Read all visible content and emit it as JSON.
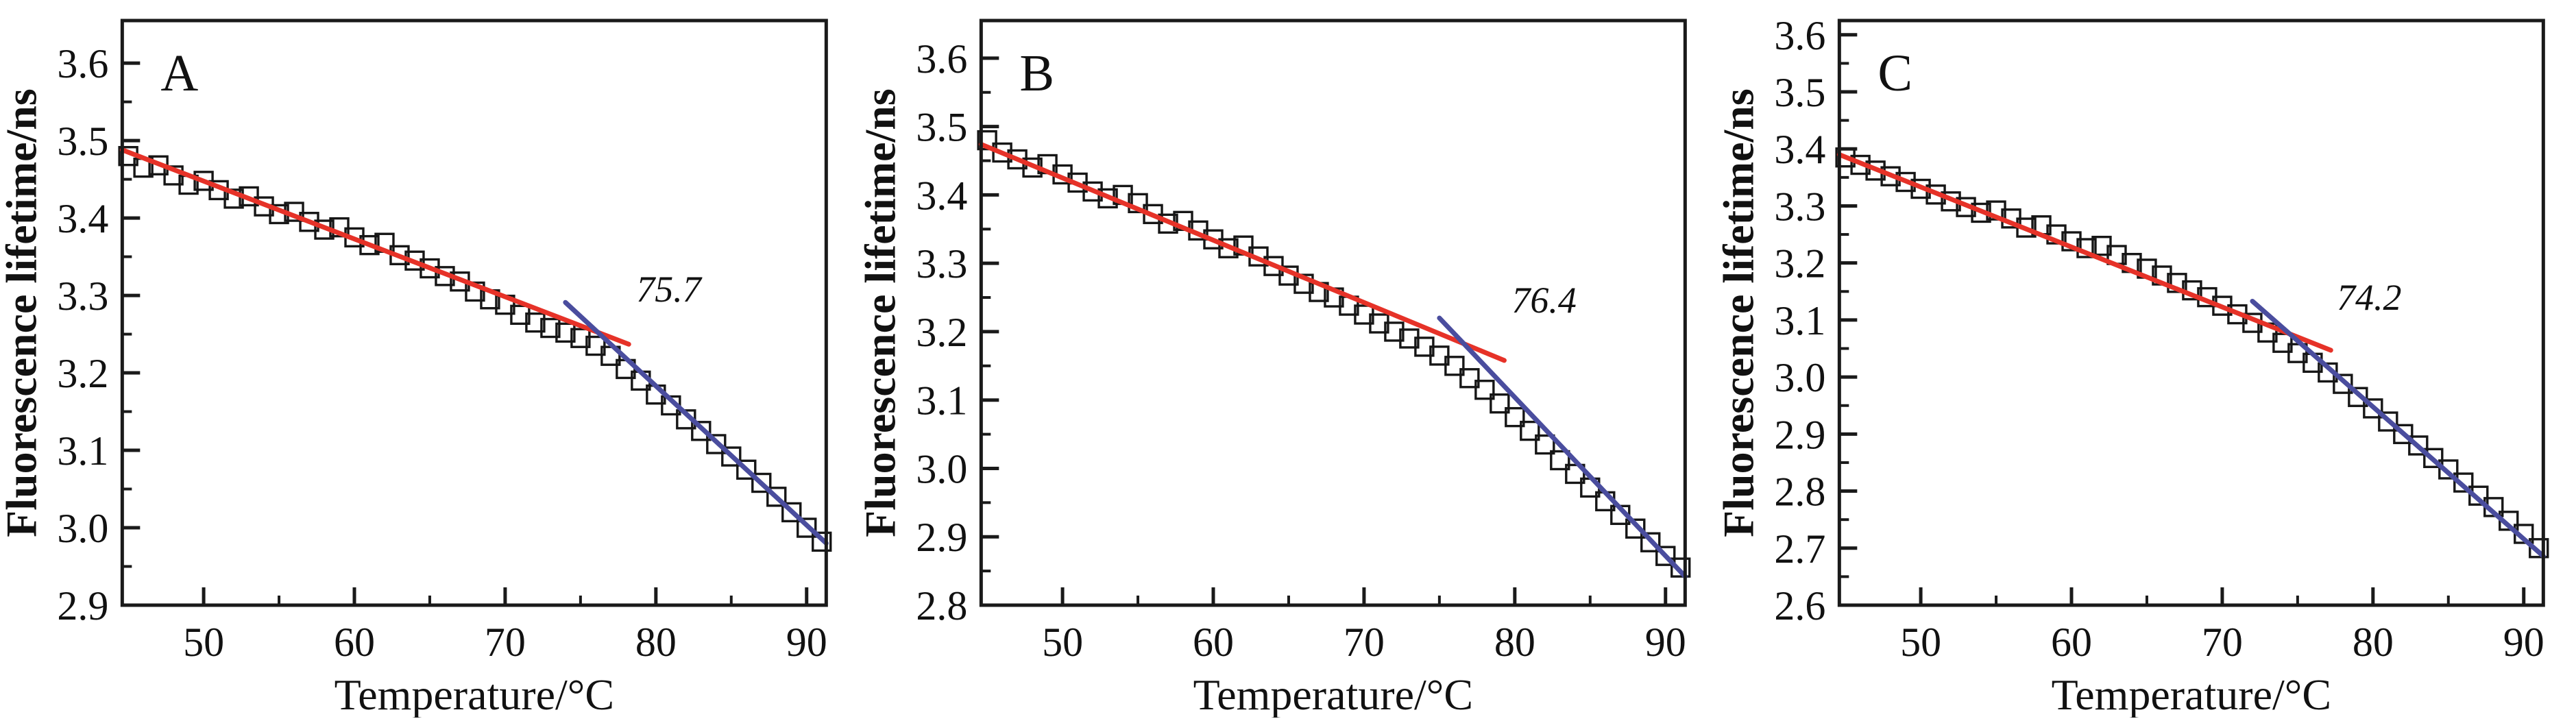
{
  "colors": {
    "marker": "#161616",
    "axis": "#1a1a1a",
    "fit_red": "#e63228",
    "fit_blue": "#4a4d9e"
  },
  "chart_data": [
    {
      "type": "scatter",
      "panel": "A",
      "xlabel": "Temperature/°C",
      "ylabel": "Fluorescence lifetime/ns",
      "xlim": [
        44.6,
        91.3
      ],
      "ylim": [
        2.9,
        3.655
      ],
      "grid": false,
      "legend": "none",
      "x_major_ticks": [
        50,
        60,
        70,
        80,
        90
      ],
      "x_tick_labels": [
        "50",
        "60",
        "70",
        "80",
        "90"
      ],
      "x_minor_ticks": [
        55,
        65,
        75,
        85
      ],
      "y_major_ticks": [
        2.9,
        3.0,
        3.1,
        3.2,
        3.3,
        3.4,
        3.5,
        3.6
      ],
      "y_tick_labels": [
        "2.9",
        "3.0",
        "3.1",
        "3.2",
        "3.3",
        "3.4",
        "3.5",
        "3.6"
      ],
      "y_minor_ticks": [
        2.95,
        3.05,
        3.15,
        3.25,
        3.35,
        3.45,
        3.55
      ],
      "series": [
        {
          "name": "measured fluorescence lifetime",
          "marker": "open-square",
          "x": [
            45,
            46,
            47,
            48,
            49,
            50,
            51,
            52,
            53,
            54,
            55,
            56,
            57,
            58,
            59,
            60,
            61,
            62,
            63,
            64,
            65,
            66,
            67,
            68,
            69,
            70,
            71,
            72,
            73,
            74,
            75,
            76,
            77,
            78,
            79,
            80,
            81,
            82,
            83,
            84,
            85,
            86,
            87,
            88,
            89,
            90,
            91
          ],
          "y": [
            3.48,
            3.465,
            3.468,
            3.455,
            3.443,
            3.448,
            3.436,
            3.425,
            3.428,
            3.415,
            3.405,
            3.408,
            3.395,
            3.385,
            3.388,
            3.375,
            3.365,
            3.368,
            3.352,
            3.345,
            3.335,
            3.325,
            3.318,
            3.305,
            3.295,
            3.288,
            3.275,
            3.265,
            3.258,
            3.252,
            3.245,
            3.235,
            3.222,
            3.205,
            3.19,
            3.172,
            3.158,
            3.14,
            3.125,
            3.108,
            3.092,
            3.075,
            3.058,
            3.04,
            3.02,
            3.0,
            2.982
          ]
        },
        {
          "name": "pre-transition linear fit",
          "type": "line",
          "color_key": "fit_red",
          "x": [
            44.6,
            78.2
          ],
          "y": [
            3.488,
            3.237
          ]
        },
        {
          "name": "post-transition linear fit",
          "type": "line",
          "color_key": "fit_blue",
          "x": [
            74.0,
            91.3
          ],
          "y": [
            3.291,
            2.98
          ]
        }
      ],
      "annotation": {
        "text": "75.7",
        "x": 78.7,
        "y": 3.292
      }
    },
    {
      "type": "scatter",
      "panel": "B",
      "xlabel": "Temperature/°C",
      "ylabel": "Fluorescence lifetime/ns",
      "xlim": [
        44.6,
        91.3
      ],
      "ylim": [
        2.8,
        3.655
      ],
      "grid": false,
      "legend": "none",
      "x_major_ticks": [
        50,
        60,
        70,
        80,
        90
      ],
      "x_tick_labels": [
        "50",
        "60",
        "70",
        "80",
        "90"
      ],
      "x_minor_ticks": [
        55,
        65,
        75,
        85
      ],
      "y_major_ticks": [
        2.8,
        2.9,
        3.0,
        3.1,
        3.2,
        3.3,
        3.4,
        3.5,
        3.6
      ],
      "y_tick_labels": [
        "2.8",
        "2.9",
        "3.0",
        "3.1",
        "3.2",
        "3.3",
        "3.4",
        "3.5",
        "3.6"
      ],
      "y_minor_ticks": [
        2.85,
        2.95,
        3.05,
        3.15,
        3.25,
        3.35,
        3.45,
        3.55
      ],
      "series": [
        {
          "name": "measured fluorescence lifetime",
          "marker": "open-square",
          "x": [
            45,
            46,
            47,
            48,
            49,
            50,
            51,
            52,
            53,
            54,
            55,
            56,
            57,
            58,
            59,
            60,
            61,
            62,
            63,
            64,
            65,
            66,
            67,
            68,
            69,
            70,
            71,
            72,
            73,
            74,
            75,
            76,
            77,
            78,
            79,
            80,
            81,
            82,
            83,
            84,
            85,
            86,
            87,
            88,
            89,
            90,
            91
          ],
          "y": [
            3.48,
            3.462,
            3.452,
            3.44,
            3.445,
            3.43,
            3.418,
            3.405,
            3.395,
            3.4,
            3.388,
            3.372,
            3.358,
            3.362,
            3.348,
            3.335,
            3.322,
            3.326,
            3.31,
            3.296,
            3.282,
            3.27,
            3.258,
            3.25,
            3.238,
            3.225,
            3.212,
            3.2,
            3.19,
            3.178,
            3.165,
            3.15,
            3.132,
            3.115,
            3.095,
            3.075,
            3.055,
            3.035,
            3.012,
            2.992,
            2.972,
            2.952,
            2.932,
            2.912,
            2.892,
            2.872,
            2.855
          ]
        },
        {
          "name": "pre-transition linear fit",
          "type": "line",
          "color_key": "fit_red",
          "x": [
            44.6,
            79.3
          ],
          "y": [
            3.474,
            3.158
          ]
        },
        {
          "name": "post-transition linear fit",
          "type": "line",
          "color_key": "fit_blue",
          "x": [
            75.0,
            91.3
          ],
          "y": [
            3.22,
            2.842
          ]
        }
      ],
      "annotation": {
        "text": "76.4",
        "x": 79.8,
        "y": 3.228
      }
    },
    {
      "type": "scatter",
      "panel": "C",
      "xlabel": "Temperature/°C",
      "ylabel": "Fluorescence lifetime/ns",
      "xlim": [
        44.6,
        91.3
      ],
      "ylim": [
        2.6,
        3.625
      ],
      "grid": false,
      "legend": "none",
      "x_major_ticks": [
        50,
        60,
        70,
        80,
        90
      ],
      "x_tick_labels": [
        "50",
        "60",
        "70",
        "80",
        "90"
      ],
      "x_minor_ticks": [
        55,
        65,
        75,
        85
      ],
      "y_major_ticks": [
        2.6,
        2.7,
        2.8,
        2.9,
        3.0,
        3.1,
        3.2,
        3.3,
        3.4,
        3.5,
        3.6
      ],
      "y_tick_labels": [
        "2.6",
        "2.7",
        "2.8",
        "2.9",
        "3.0",
        "3.1",
        "3.2",
        "3.3",
        "3.4",
        "3.5",
        "3.6"
      ],
      "y_minor_ticks": [
        2.65,
        2.75,
        2.85,
        2.95,
        3.05,
        3.15,
        3.25,
        3.35,
        3.45,
        3.55
      ],
      "series": [
        {
          "name": "measured fluorescence lifetime",
          "marker": "open-square",
          "x": [
            45,
            46,
            47,
            48,
            49,
            50,
            51,
            52,
            53,
            54,
            55,
            56,
            57,
            58,
            59,
            60,
            61,
            62,
            63,
            64,
            65,
            66,
            67,
            68,
            69,
            70,
            71,
            72,
            73,
            74,
            75,
            76,
            77,
            78,
            79,
            80,
            81,
            82,
            83,
            84,
            85,
            86,
            87,
            88,
            89,
            90,
            91
          ],
          "y": [
            3.385,
            3.372,
            3.362,
            3.352,
            3.342,
            3.33,
            3.32,
            3.308,
            3.298,
            3.288,
            3.292,
            3.278,
            3.262,
            3.266,
            3.25,
            3.238,
            3.226,
            3.23,
            3.214,
            3.2,
            3.19,
            3.178,
            3.165,
            3.152,
            3.14,
            3.125,
            3.11,
            3.095,
            3.078,
            3.06,
            3.042,
            3.025,
            3.008,
            2.988,
            2.965,
            2.945,
            2.922,
            2.9,
            2.88,
            2.858,
            2.838,
            2.815,
            2.792,
            2.772,
            2.748,
            2.725,
            2.7
          ]
        },
        {
          "name": "pre-transition linear fit",
          "type": "line",
          "color_key": "fit_red",
          "x": [
            44.6,
            77.2
          ],
          "y": [
            3.39,
            3.047
          ]
        },
        {
          "name": "post-transition linear fit",
          "type": "line",
          "color_key": "fit_blue",
          "x": [
            72.0,
            91.3
          ],
          "y": [
            3.133,
            2.686
          ]
        }
      ],
      "annotation": {
        "text": "74.2",
        "x": 77.6,
        "y": 3.118
      }
    }
  ]
}
